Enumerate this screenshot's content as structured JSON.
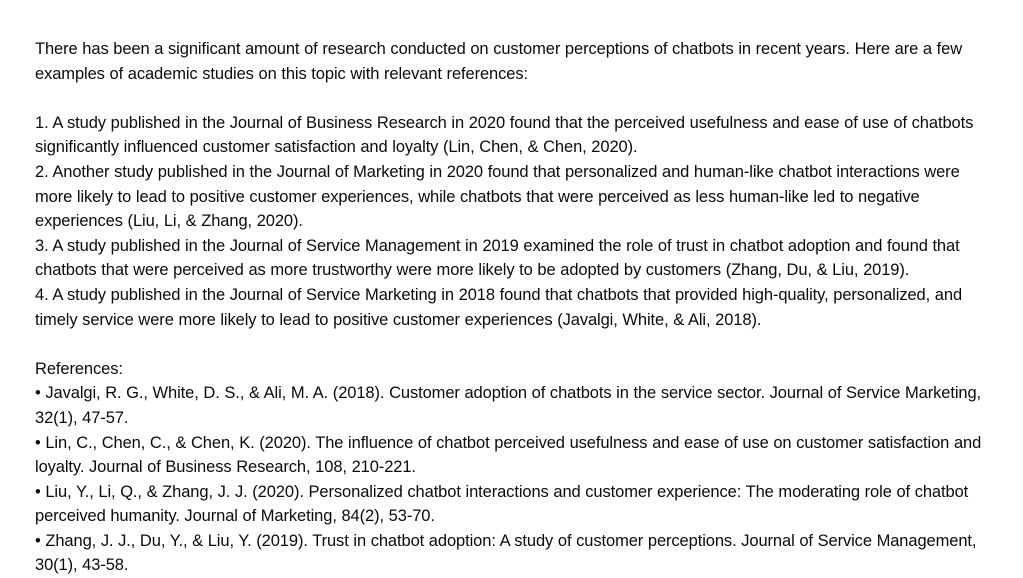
{
  "document": {
    "intro": "There has been a significant amount of research conducted on customer perceptions of chatbots in recent years. Here are a few examples of academic studies on this topic with relevant references:",
    "studies": [
      "1. A study published in the Journal of Business Research in 2020 found that the perceived usefulness and ease of use of chatbots significantly influenced customer satisfaction and loyalty (Lin, Chen, & Chen, 2020).",
      "2. Another study published in the Journal of Marketing in 2020 found that personalized and human-like chatbot interactions were more likely to lead to positive customer experiences, while chatbots that were perceived as less human-like led to negative experiences (Liu, Li, & Zhang, 2020).",
      "3. A study published in the Journal of Service Management in 2019 examined the role of trust in chatbot adoption and found that chatbots that were perceived as more trustworthy were more likely to be adopted by customers (Zhang, Du, & Liu, 2019).",
      "4. A study published in the Journal of Service Marketing in 2018 found that chatbots that provided high-quality, personalized, and timely service were more likely to lead to positive customer experiences (Javalgi, White, & Ali, 2018)."
    ],
    "references_heading": "References:",
    "references": [
      "• Javalgi, R. G., White, D. S., & Ali, M. A. (2018). Customer adoption of chatbots in the service sector. Journal of Service Marketing, 32(1), 47-57.",
      "• Lin, C., Chen, C., & Chen, K. (2020). The influence of chatbot perceived usefulness and ease of use on customer satisfaction and loyalty. Journal of Business Research, 108, 210-221.",
      "• Liu, Y., Li, Q., & Zhang, J. J. (2020). Personalized chatbot interactions and customer experience: The moderating role of chatbot perceived humanity. Journal of Marketing, 84(2), 53-70.",
      "• Zhang, J. J., Du, Y., & Liu, Y. (2019). Trust in chatbot adoption: A study of customer perceptions. Journal of Service Management, 30(1), 43-58."
    ]
  }
}
